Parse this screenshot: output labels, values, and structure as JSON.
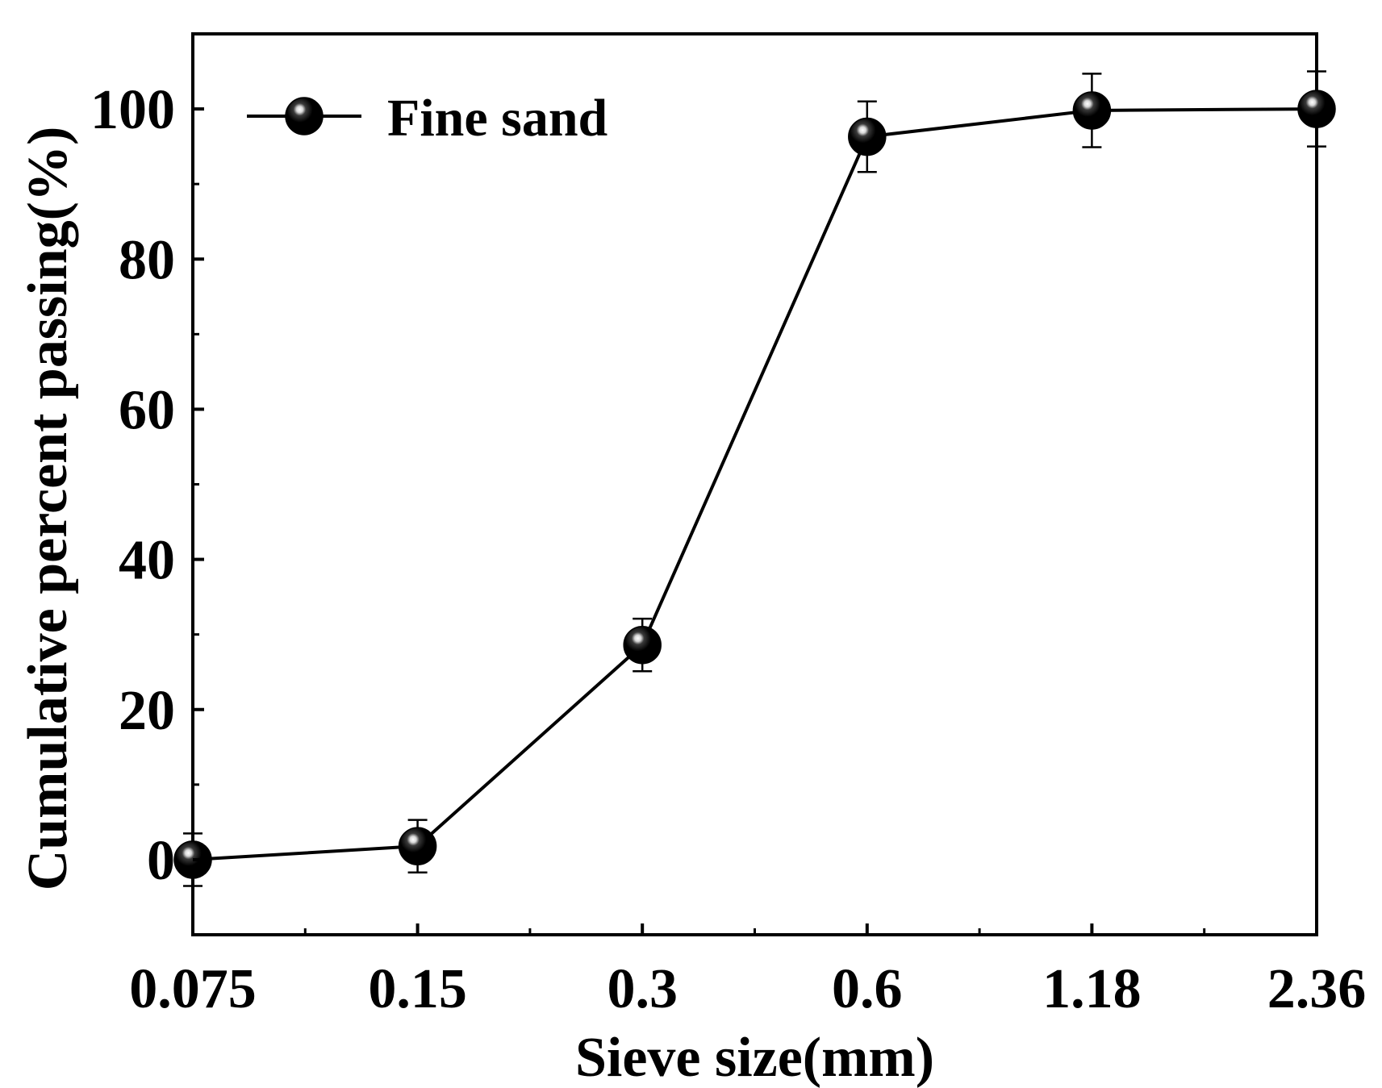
{
  "chart_data": {
    "type": "line",
    "title": "",
    "xlabel": "Sieve size(mm)",
    "ylabel": "Cumulative percent passing(%)",
    "categories": [
      "0.075",
      "0.15",
      "0.3",
      "0.6",
      "1.18",
      "2.36"
    ],
    "ylim": [
      -10,
      110
    ],
    "yticks": [
      "0",
      "20",
      "40",
      "60",
      "80",
      "100"
    ],
    "grid": false,
    "legend_position": "top-left",
    "series": [
      {
        "name": "Fine sand",
        "values": [
          0,
          1.8,
          28.6,
          96.3,
          99.8,
          100
        ],
        "errors": [
          3.5,
          3.5,
          3.5,
          4.7,
          4.9,
          5.0
        ],
        "color": "#000000",
        "marker": "sphere"
      }
    ]
  }
}
